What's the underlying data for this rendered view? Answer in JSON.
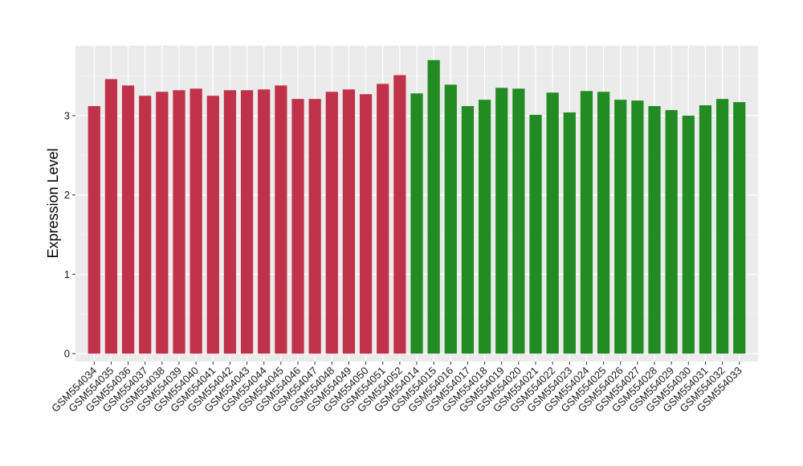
{
  "chart_data": {
    "type": "bar",
    "ylabel": "Expression Level",
    "xlabel": "",
    "ylim": [
      -0.1,
      3.88
    ],
    "yticks": [
      0,
      1,
      2,
      3
    ],
    "grid": true,
    "legend": "none",
    "categories": [
      "GSM554034",
      "GSM554035",
      "GSM554036",
      "GSM554037",
      "GSM554038",
      "GSM554039",
      "GSM554040",
      "GSM554041",
      "GSM554042",
      "GSM554043",
      "GSM554044",
      "GSM554045",
      "GSM554046",
      "GSM554047",
      "GSM554048",
      "GSM554049",
      "GSM554050",
      "GSM554051",
      "GSM554052",
      "GSM554014",
      "GSM554015",
      "GSM554016",
      "GSM554017",
      "GSM554018",
      "GSM554019",
      "GSM554020",
      "GSM554021",
      "GSM554022",
      "GSM554023",
      "GSM554024",
      "GSM554025",
      "GSM554026",
      "GSM554027",
      "GSM554028",
      "GSM554029",
      "GSM554030",
      "GSM554031",
      "GSM554032",
      "GSM554033"
    ],
    "values": [
      3.12,
      3.46,
      3.38,
      3.25,
      3.3,
      3.32,
      3.34,
      3.25,
      3.32,
      3.32,
      3.33,
      3.38,
      3.21,
      3.21,
      3.3,
      3.33,
      3.27,
      3.4,
      3.51,
      3.28,
      3.7,
      3.39,
      3.12,
      3.2,
      3.35,
      3.34,
      3.01,
      3.29,
      3.04,
      3.31,
      3.3,
      3.2,
      3.19,
      3.12,
      3.07,
      3.0,
      3.13,
      3.21,
      3.17
    ],
    "group_sizes": [
      19,
      20
    ],
    "colors": [
      "#c0314a",
      "#228b22"
    ]
  },
  "style": {
    "panel_bg": "#ebebeb",
    "grid_major": "#ffffff",
    "grid_minor": "#f4f4f4",
    "tick_color": "#333333"
  }
}
